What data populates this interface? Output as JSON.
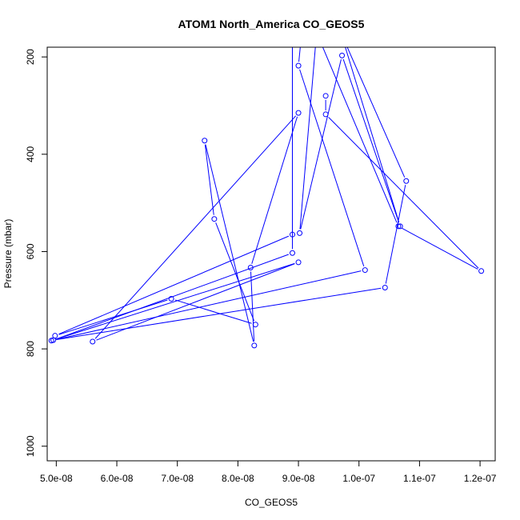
{
  "chart_data": {
    "type": "line",
    "title": "ATOM1 North_America CO_GEOS5",
    "xlabel": "CO_GEOS5",
    "ylabel": "Pressure (mbar)",
    "xlim": [
      4.85e-08,
      1.225e-07
    ],
    "ylim": [
      1030,
      180
    ],
    "y_reversed": true,
    "x_ticks": [
      {
        "value": 5e-08,
        "label": "5.0e-08"
      },
      {
        "value": 6e-08,
        "label": "6.0e-08"
      },
      {
        "value": 7e-08,
        "label": "7.0e-08"
      },
      {
        "value": 8e-08,
        "label": "8.0e-08"
      },
      {
        "value": 9e-08,
        "label": "9.0e-08"
      },
      {
        "value": 1e-07,
        "label": "1.0e-07"
      },
      {
        "value": 1.1e-07,
        "label": "1.1e-07"
      },
      {
        "value": 1.2e-07,
        "label": "1.2e-07"
      }
    ],
    "y_ticks": [
      {
        "value": 200,
        "label": "200"
      },
      {
        "value": 400,
        "label": "400"
      },
      {
        "value": 600,
        "label": "600"
      },
      {
        "value": 800,
        "label": "800"
      },
      {
        "value": 1000,
        "label": "1000"
      }
    ],
    "color": "#0000ff",
    "grid": false,
    "series": [
      {
        "points": [
          {
            "x": 9.05e-08,
            "y": 155
          },
          {
            "x": 9e-08,
            "y": 218
          },
          {
            "x": 1.01e-07,
            "y": 638
          },
          {
            "x": 4.92e-08,
            "y": 783
          },
          {
            "x": 9e-08,
            "y": 622
          },
          {
            "x": 5.6e-08,
            "y": 785
          },
          {
            "x": 9e-08,
            "y": 315
          },
          {
            "x": 8.21e-08,
            "y": 633
          },
          {
            "x": 8.27e-08,
            "y": 793
          },
          {
            "x": 7.45e-08,
            "y": 372
          },
          {
            "x": 7.61e-08,
            "y": 533
          },
          {
            "x": 8.29e-08,
            "y": 750
          },
          {
            "x": 6.9e-08,
            "y": 697
          },
          {
            "x": 4.98e-08,
            "y": 773
          },
          {
            "x": 8.9e-08,
            "y": 565
          },
          {
            "x": 8.9e-08,
            "y": 155
          },
          {
            "x": 8.9e-08,
            "y": 155
          },
          {
            "x": 8.9e-08,
            "y": 603
          },
          {
            "x": 4.95e-08,
            "y": 782
          },
          {
            "x": 1.043e-07,
            "y": 674
          },
          {
            "x": 1.078e-07,
            "y": 455
          },
          {
            "x": 9.7e-08,
            "y": 150
          },
          {
            "x": 1.068e-07,
            "y": 548
          },
          {
            "x": 9.72e-08,
            "y": 197
          },
          {
            "x": 9.02e-08,
            "y": 562
          },
          {
            "x": 9.3e-08,
            "y": 150
          },
          {
            "x": 1.065e-07,
            "y": 548
          },
          {
            "x": 1.202e-07,
            "y": 640
          },
          {
            "x": 9.45e-08,
            "y": 318
          },
          {
            "x": 9.45e-08,
            "y": 280
          }
        ]
      }
    ]
  }
}
